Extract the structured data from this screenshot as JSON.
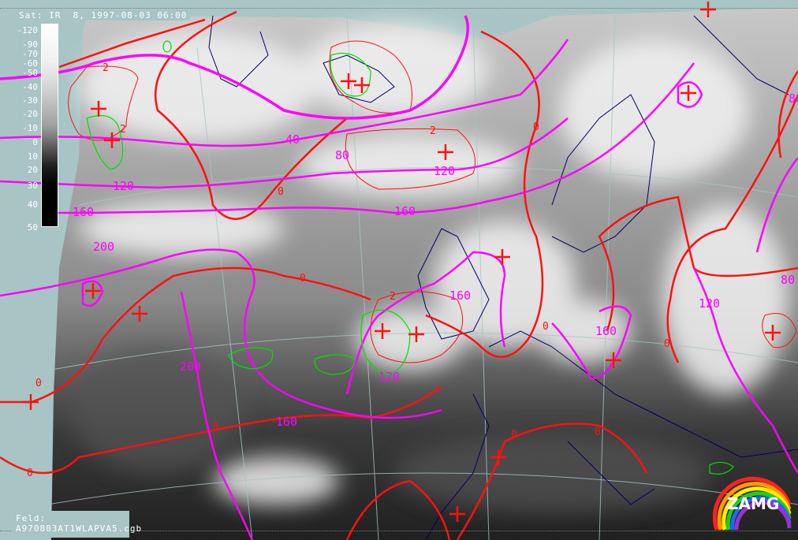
{
  "header": {
    "title": "Sat: IR  8, 1997-08-03 06:00"
  },
  "legend": {
    "ticks": [
      "-120",
      "-90",
      "-70",
      "-60",
      "-50",
      "-40",
      "-30",
      "-20",
      "-10",
      "0",
      "10",
      "20",
      "30",
      "40",
      "50"
    ]
  },
  "footer": {
    "label": "Feld:",
    "filename": "A970803AT1WLAPVA5.cgb"
  },
  "logo": {
    "text": "ZAMG"
  },
  "contour_labels": {
    "red": [
      "2",
      "0",
      "2",
      "0",
      "0",
      "0",
      "0",
      "0",
      "0",
      "0",
      "0",
      "0",
      "2",
      "2"
    ],
    "magenta": [
      "40",
      "80",
      "120",
      "120",
      "160",
      "160",
      "200",
      "160",
      "160",
      "120",
      "80",
      "120",
      "160",
      "80",
      "200"
    ]
  },
  "colors": {
    "background": "#a8c4c4",
    "red_contour": "#ff1010",
    "magenta_contour": "#ff00ff",
    "green_contour": "#00e000",
    "coastline": "#000060"
  }
}
